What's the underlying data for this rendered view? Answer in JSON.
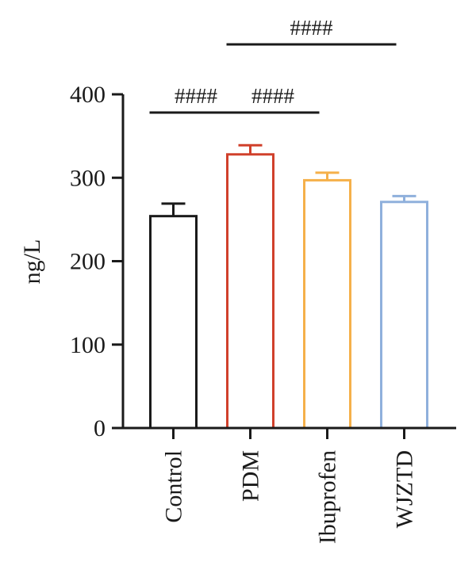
{
  "chart_data": {
    "type": "bar",
    "title": "",
    "xlabel": "",
    "ylabel": "ng/L",
    "ylim": [
      0,
      400
    ],
    "yticks": [
      0,
      100,
      200,
      300,
      400
    ],
    "categories": [
      "Control",
      "PDM",
      "Ibuprofen",
      "WJZTD"
    ],
    "values": [
      254,
      328,
      297,
      271
    ],
    "errors": [
      15,
      11,
      9,
      7
    ],
    "colors": [
      "#1a1a1a",
      "#d0402b",
      "#f5b04a",
      "#8fb0dc"
    ],
    "grid": false,
    "legend": "none",
    "annotations": [
      {
        "text": "####",
        "from": "Control",
        "to": "PDM",
        "level": 1
      },
      {
        "text": "####",
        "from": "PDM",
        "to": "Ibuprofen",
        "level": 1
      },
      {
        "text": "####",
        "from": "PDM",
        "to": "WJZTD",
        "level": 2
      }
    ]
  }
}
